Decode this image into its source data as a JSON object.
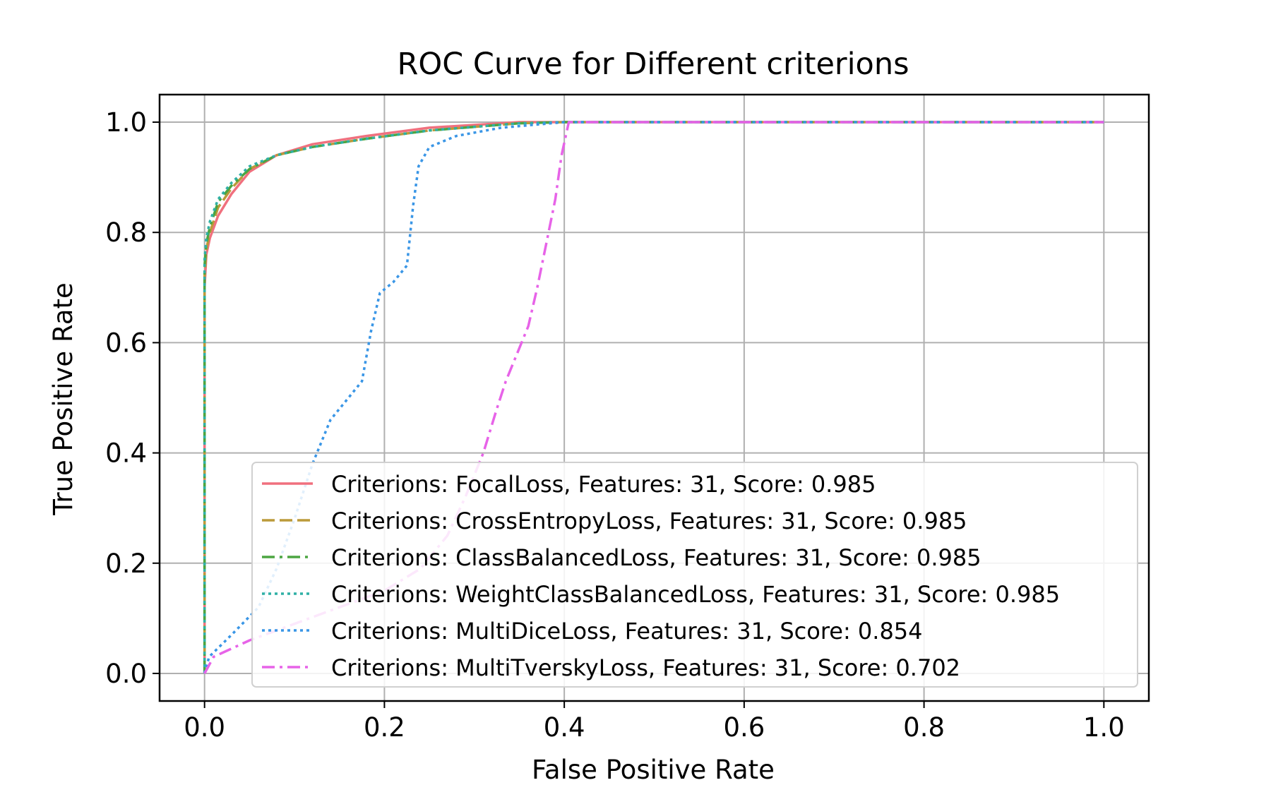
{
  "chart_data": {
    "type": "line",
    "title": "ROC Curve for Different criterions",
    "xlabel": "False Positive Rate",
    "ylabel": "True Positive Rate",
    "xlim": [
      -0.05,
      1.05
    ],
    "ylim": [
      -0.05,
      1.05
    ],
    "xticks": [
      0.0,
      0.2,
      0.4,
      0.6,
      0.8,
      1.0
    ],
    "yticks": [
      0.0,
      0.2,
      0.4,
      0.6,
      0.8,
      1.0
    ],
    "xtick_labels": [
      "0.0",
      "0.2",
      "0.4",
      "0.6",
      "0.8",
      "1.0"
    ],
    "ytick_labels": [
      "0.0",
      "0.2",
      "0.4",
      "0.6",
      "0.8",
      "1.0"
    ],
    "grid": true,
    "legend_position": "lower-right",
    "series": [
      {
        "name": "Criterions: FocalLoss, Features: 31, Score: 0.985",
        "color": "#f0707e",
        "style": "solid",
        "points": [
          [
            0,
            0
          ],
          [
            0,
            0.7
          ],
          [
            0.002,
            0.76
          ],
          [
            0.006,
            0.79
          ],
          [
            0.015,
            0.83
          ],
          [
            0.03,
            0.87
          ],
          [
            0.05,
            0.91
          ],
          [
            0.08,
            0.94
          ],
          [
            0.12,
            0.96
          ],
          [
            0.18,
            0.975
          ],
          [
            0.25,
            0.99
          ],
          [
            0.35,
            1.0
          ],
          [
            0.4,
            1.0
          ],
          [
            1.0,
            1.0
          ]
        ]
      },
      {
        "name": "Criterions: CrossEntropyLoss, Features: 31, Score: 0.985",
        "color": "#bb9a3a",
        "style": "dashed",
        "points": [
          [
            0,
            0
          ],
          [
            0,
            0.72
          ],
          [
            0.002,
            0.77
          ],
          [
            0.006,
            0.8
          ],
          [
            0.015,
            0.845
          ],
          [
            0.03,
            0.88
          ],
          [
            0.05,
            0.915
          ],
          [
            0.08,
            0.94
          ],
          [
            0.12,
            0.955
          ],
          [
            0.18,
            0.97
          ],
          [
            0.25,
            0.985
          ],
          [
            0.35,
            0.998
          ],
          [
            0.4,
            1.0
          ],
          [
            1.0,
            1.0
          ]
        ]
      },
      {
        "name": "Criterions: ClassBalancedLoss, Features: 31, Score: 0.985",
        "color": "#4ca541",
        "style": "dashdot",
        "points": [
          [
            0,
            0
          ],
          [
            0,
            0.74
          ],
          [
            0.002,
            0.78
          ],
          [
            0.006,
            0.81
          ],
          [
            0.015,
            0.855
          ],
          [
            0.03,
            0.885
          ],
          [
            0.05,
            0.915
          ],
          [
            0.08,
            0.94
          ],
          [
            0.12,
            0.955
          ],
          [
            0.18,
            0.97
          ],
          [
            0.25,
            0.985
          ],
          [
            0.35,
            0.998
          ],
          [
            0.4,
            1.0
          ],
          [
            1.0,
            1.0
          ]
        ]
      },
      {
        "name": "Criterions: WeightClassBalancedLoss, Features: 31, Score: 0.985",
        "color": "#2fb0a5",
        "style": "dotted",
        "points": [
          [
            0,
            0
          ],
          [
            0,
            0.75
          ],
          [
            0.002,
            0.79
          ],
          [
            0.006,
            0.82
          ],
          [
            0.015,
            0.86
          ],
          [
            0.03,
            0.89
          ],
          [
            0.05,
            0.92
          ],
          [
            0.08,
            0.94
          ],
          [
            0.12,
            0.955
          ],
          [
            0.18,
            0.97
          ],
          [
            0.25,
            0.985
          ],
          [
            0.35,
            0.998
          ],
          [
            0.4,
            1.0
          ],
          [
            1.0,
            1.0
          ]
        ]
      },
      {
        "name": "Criterions: MultiDiceLoss, Features: 31, Score: 0.854",
        "color": "#3a96e6",
        "style": "dotted",
        "points": [
          [
            0,
            0
          ],
          [
            0.005,
            0.03
          ],
          [
            0.03,
            0.07
          ],
          [
            0.06,
            0.12
          ],
          [
            0.08,
            0.19
          ],
          [
            0.1,
            0.28
          ],
          [
            0.12,
            0.38
          ],
          [
            0.14,
            0.46
          ],
          [
            0.16,
            0.5
          ],
          [
            0.175,
            0.53
          ],
          [
            0.185,
            0.62
          ],
          [
            0.195,
            0.69
          ],
          [
            0.21,
            0.71
          ],
          [
            0.225,
            0.74
          ],
          [
            0.232,
            0.85
          ],
          [
            0.238,
            0.92
          ],
          [
            0.25,
            0.955
          ],
          [
            0.28,
            0.975
          ],
          [
            0.33,
            0.99
          ],
          [
            0.4,
            1.0
          ],
          [
            1.0,
            1.0
          ]
        ]
      },
      {
        "name": "Criterions: MultiTverskyLoss, Features: 31, Score: 0.702",
        "color": "#e763e8",
        "style": "dashdot",
        "points": [
          [
            0,
            0
          ],
          [
            0.01,
            0.03
          ],
          [
            0.05,
            0.06
          ],
          [
            0.1,
            0.09
          ],
          [
            0.15,
            0.12
          ],
          [
            0.2,
            0.15
          ],
          [
            0.24,
            0.19
          ],
          [
            0.27,
            0.25
          ],
          [
            0.29,
            0.32
          ],
          [
            0.31,
            0.4
          ],
          [
            0.325,
            0.48
          ],
          [
            0.335,
            0.53
          ],
          [
            0.345,
            0.57
          ],
          [
            0.36,
            0.63
          ],
          [
            0.37,
            0.7
          ],
          [
            0.38,
            0.78
          ],
          [
            0.39,
            0.86
          ],
          [
            0.397,
            0.94
          ],
          [
            0.405,
            1.0
          ],
          [
            1.0,
            1.0
          ]
        ]
      }
    ]
  }
}
